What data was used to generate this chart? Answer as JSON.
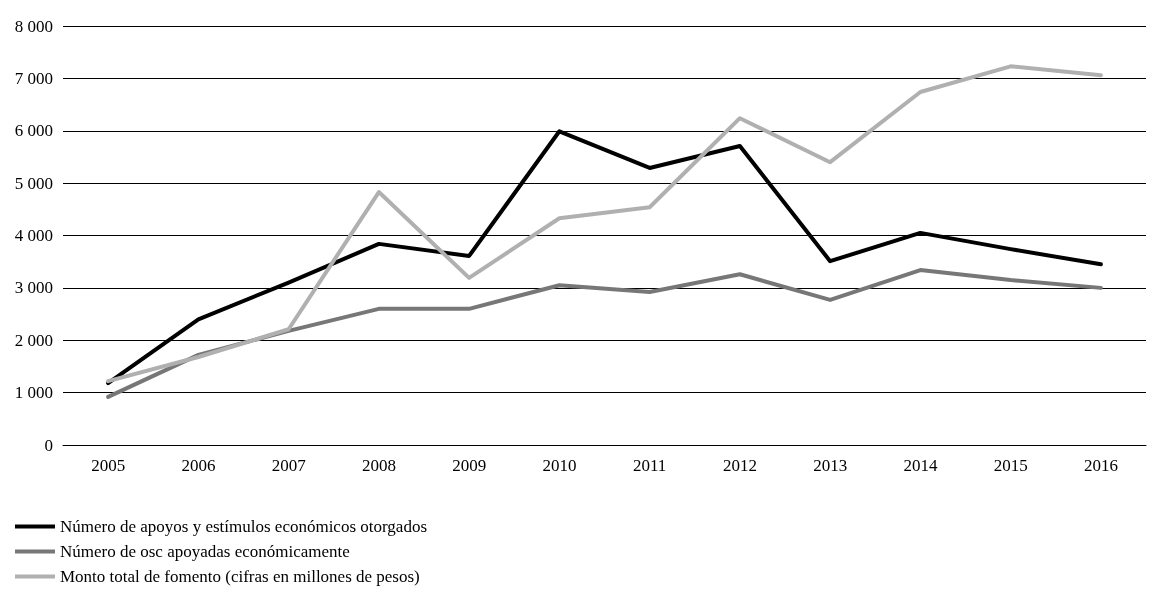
{
  "chart_data": {
    "type": "line",
    "categories": [
      "2005",
      "2006",
      "2007",
      "2008",
      "2009",
      "2010",
      "2011",
      "2012",
      "2013",
      "2014",
      "2015",
      "2016"
    ],
    "series": [
      {
        "name": "Número de apoyos y estímulos económicos otorgados",
        "color": "#000000",
        "values": [
          1180,
          2400,
          3100,
          3840,
          3610,
          5990,
          5290,
          5710,
          3510,
          4050,
          3740,
          3450
        ]
      },
      {
        "name": "Número de osc apoyadas económicamente",
        "color": "#777777",
        "values": [
          920,
          1720,
          2180,
          2600,
          2600,
          3050,
          2920,
          3260,
          2770,
          3340,
          3150,
          3000
        ]
      },
      {
        "name": "Monto total de fomento (cifras en millones de pesos)",
        "color": "#b0b0b0",
        "values": [
          1220,
          1680,
          2210,
          4830,
          3190,
          4330,
          4540,
          6240,
          5400,
          6740,
          7230,
          7060
        ]
      }
    ],
    "ylim": [
      0,
      8000
    ],
    "yticks": [
      0,
      {
        "value": 1000,
        "label": "1 000"
      },
      {
        "value": 2000,
        "label": "2 000"
      },
      {
        "value": 3000,
        "label": "3 000"
      },
      {
        "value": 4000,
        "label": "4 000"
      },
      {
        "value": 5000,
        "label": "5 000"
      },
      {
        "value": 6000,
        "label": "6 000"
      },
      {
        "value": 7000,
        "label": "7 000"
      },
      {
        "value": 8000,
        "label": "8 000"
      }
    ],
    "grid": "y",
    "legend": "bottom left",
    "marker": "none",
    "line_style": "solid"
  }
}
